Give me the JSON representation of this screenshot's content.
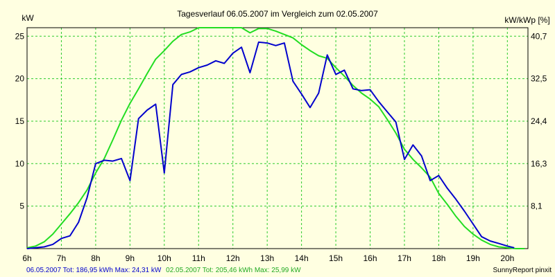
{
  "chart_data": {
    "type": "line",
    "title": "Tagesverlauf 06.05.2007 im Vergleich zum 02.05.2007",
    "ylabel_left": "kW",
    "ylabel_right": "kW/kWp [%]",
    "x_ticks": [
      "6h",
      "7h",
      "8h",
      "9h",
      "10h",
      "11h",
      "12h",
      "13h",
      "14h",
      "15h",
      "16h",
      "17h",
      "18h",
      "19h",
      "20h"
    ],
    "x_range": [
      6,
      20.6
    ],
    "ylim": [
      0,
      26
    ],
    "y_ticks_left": [
      "5",
      "10",
      "15",
      "20",
      "25"
    ],
    "y_ticks_right": [
      "8,1",
      "16,3",
      "24,4",
      "32,5",
      "40,7"
    ],
    "grid": true,
    "colors": {
      "series_blue": "#0000cc",
      "series_green": "#22dd22",
      "grid": "#2bcb2b",
      "axis": "#000000",
      "background": "#ffffe1"
    },
    "series": [
      {
        "name": "06.05.2007",
        "x": [
          6.0,
          6.25,
          6.5,
          6.75,
          7.0,
          7.25,
          7.5,
          7.75,
          8.0,
          8.25,
          8.5,
          8.75,
          9.0,
          9.25,
          9.5,
          9.75,
          10.0,
          10.25,
          10.5,
          10.75,
          11.0,
          11.25,
          11.5,
          11.75,
          12.0,
          12.25,
          12.5,
          12.75,
          13.0,
          13.25,
          13.5,
          13.75,
          14.0,
          14.25,
          14.5,
          14.75,
          15.0,
          15.25,
          15.5,
          15.75,
          16.0,
          16.25,
          16.5,
          16.75,
          17.0,
          17.25,
          17.5,
          17.75,
          18.0,
          18.25,
          18.5,
          18.75,
          19.0,
          19.25,
          19.5,
          19.75,
          20.0,
          20.2
        ],
        "y": [
          0,
          0.1,
          0.2,
          0.5,
          1.2,
          1.5,
          3.1,
          6.0,
          10.0,
          10.4,
          10.3,
          10.6,
          8.0,
          15.3,
          16.3,
          17.0,
          8.9,
          19.3,
          20.5,
          20.8,
          21.3,
          21.6,
          22.1,
          21.8,
          23.0,
          23.7,
          20.7,
          24.3,
          24.2,
          23.9,
          24.2,
          19.7,
          18.2,
          16.6,
          18.3,
          22.8,
          20.5,
          21.0,
          18.8,
          18.6,
          18.7,
          17.3,
          16.1,
          14.9,
          10.5,
          12.2,
          10.9,
          8.0,
          8.6,
          7.1,
          5.8,
          4.4,
          2.9,
          1.4,
          0.9,
          0.6,
          0.3,
          0.1
        ]
      },
      {
        "name": "02.05.2007",
        "x": [
          6.0,
          6.25,
          6.5,
          6.75,
          7.0,
          7.25,
          7.5,
          7.75,
          8.0,
          8.25,
          8.5,
          8.75,
          9.0,
          9.25,
          9.5,
          9.75,
          10.0,
          10.25,
          10.5,
          10.75,
          11.0,
          11.25,
          11.5,
          11.75,
          12.0,
          12.25,
          12.5,
          12.75,
          13.0,
          13.25,
          13.5,
          13.75,
          14.0,
          14.25,
          14.5,
          14.75,
          15.0,
          15.25,
          15.5,
          15.75,
          16.0,
          16.25,
          16.5,
          16.75,
          17.0,
          17.25,
          17.5,
          17.75,
          18.0,
          18.25,
          18.5,
          18.75,
          19.0,
          19.25,
          19.5,
          19.75,
          20.0,
          20.25,
          20.5
        ],
        "y": [
          0.1,
          0.3,
          0.8,
          1.7,
          2.9,
          4.1,
          5.4,
          6.9,
          8.9,
          10.6,
          12.8,
          15.1,
          17.1,
          18.8,
          20.6,
          22.3,
          23.3,
          24.4,
          25.2,
          25.5,
          26.0,
          26.3,
          26.6,
          26.3,
          26.6,
          26.3,
          25.4,
          25.9,
          25.9,
          25.6,
          25.2,
          24.8,
          24.0,
          23.3,
          22.7,
          22.4,
          21.3,
          20.3,
          19.2,
          18.3,
          17.6,
          16.7,
          15.2,
          13.6,
          11.7,
          10.5,
          9.5,
          8.4,
          6.5,
          5.2,
          3.8,
          2.6,
          1.7,
          1.0,
          0.5,
          0.2,
          0.1,
          0.0,
          0.0
        ]
      }
    ],
    "footer": {
      "blue_text": "06.05.2007 Tot: 186,95 kWh Max: 24,31 kW",
      "green_text": "02.05.2007 Tot: 205,46 kWh Max: 25,99 kW",
      "brand": "SunnyReport pinxit"
    }
  }
}
